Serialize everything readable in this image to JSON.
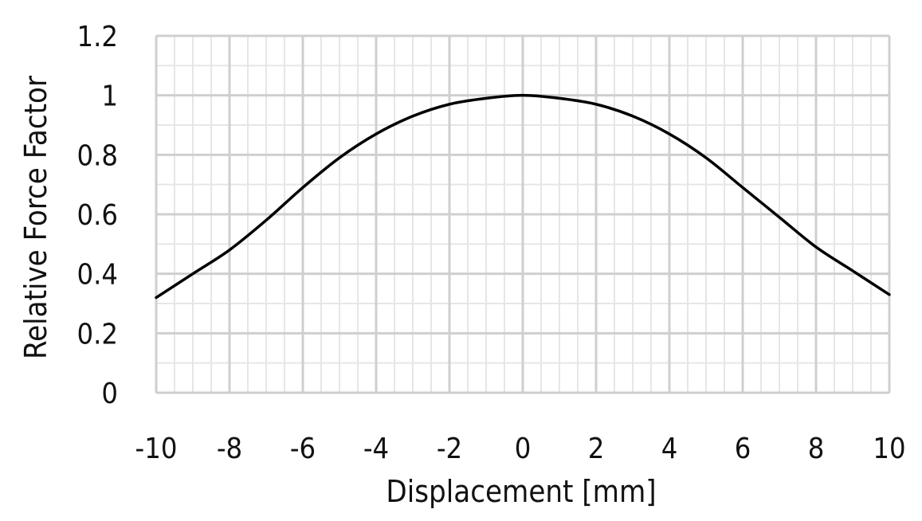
{
  "chart_data": {
    "type": "line",
    "title": "",
    "xlabel": "Displacement  [mm]",
    "ylabel": "Relative Force Factor",
    "xlim": [
      -10,
      10
    ],
    "ylim": [
      0,
      1.2
    ],
    "x_ticks": [
      -10,
      -8,
      -6,
      -4,
      -2,
      0,
      2,
      4,
      6,
      8,
      10
    ],
    "x_tick_labels": [
      "-10",
      "-8",
      "-6",
      "-4",
      "-2",
      "0",
      "2",
      "4",
      "6",
      "8",
      "10"
    ],
    "y_ticks": [
      0,
      0.2,
      0.4,
      0.6,
      0.8,
      1,
      1.2
    ],
    "y_tick_labels": [
      "0",
      "0.2",
      "0.4",
      "0.6",
      "0.8",
      "1",
      "1.2"
    ],
    "grid": true,
    "legend": false,
    "series": [
      {
        "color": "#000000",
        "x": [
          -10,
          -9,
          -8,
          -7,
          -6,
          -5,
          -4,
          -3,
          -2,
          -1,
          0,
          1,
          2,
          3,
          4,
          5,
          6,
          7,
          8,
          9,
          10
        ],
        "y": [
          0.32,
          0.4,
          0.48,
          0.58,
          0.69,
          0.79,
          0.87,
          0.93,
          0.97,
          0.99,
          1.0,
          0.99,
          0.97,
          0.93,
          0.87,
          0.79,
          0.69,
          0.59,
          0.49,
          0.41,
          0.33
        ]
      }
    ]
  }
}
